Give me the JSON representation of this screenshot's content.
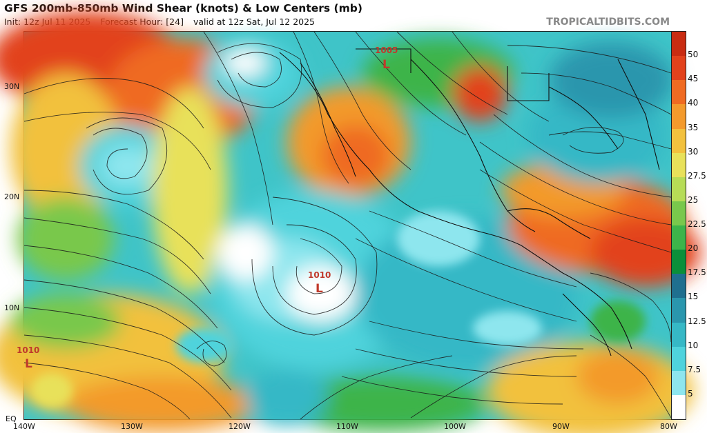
{
  "header": {
    "title": "GFS 200mb-850mb Wind Shear (knots) & Low Centers (mb)",
    "init": "Init: 12z Jul 11 2025",
    "forecast_hour": "Forecast Hour: [24]",
    "valid": "valid at 12z Sat, Jul 12 2025",
    "brand": "TROPICALTIDBITS.COM"
  },
  "axes": {
    "lat_labels": [
      "30N",
      "20N",
      "10N",
      "EQ"
    ],
    "lon_labels": [
      "140W",
      "130W",
      "120W",
      "110W",
      "100W",
      "90W",
      "80W"
    ]
  },
  "colorbar": {
    "labels": [
      "50",
      "45",
      "40",
      "35",
      "30",
      "27.5",
      "25",
      "22.5",
      "20",
      "17.5",
      "15",
      "12.5",
      "10",
      "7.5",
      "5"
    ],
    "colors": [
      "#ffffff",
      "#8ee6ee",
      "#4fd3dc",
      "#36b8c6",
      "#2a96ad",
      "#1f6f8f",
      "#0b8f3a",
      "#3db44a",
      "#79c84c",
      "#b7dc56",
      "#e8e15a",
      "#f2c13e",
      "#f39a2c",
      "#ef6b22",
      "#e2421c",
      "#c92c12"
    ]
  },
  "lows": [
    {
      "pressure": "1005",
      "letter": "L"
    },
    {
      "pressure": "1010",
      "letter": "L"
    },
    {
      "pressure": "1010",
      "letter": "L"
    }
  ],
  "legend_meaning": {
    "shear_units": "knots",
    "low_units": "mb"
  }
}
